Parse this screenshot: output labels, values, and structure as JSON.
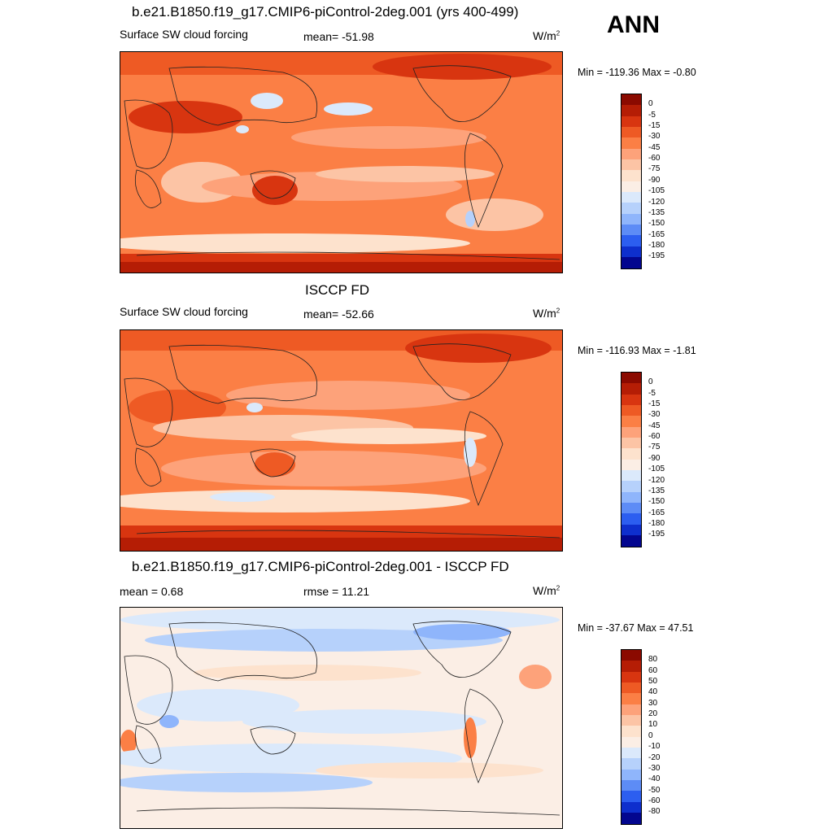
{
  "season": "ANN",
  "panels": [
    {
      "title": "b.e21.B1850.f19_g17.CMIP6-piControl-2deg.001 (yrs 400-499)",
      "left_label": "Surface SW cloud forcing",
      "center_label": "mean= -51.98",
      "units": "W/m",
      "units_sup": "2",
      "minmax": "Min = -119.36 Max =  -0.80",
      "colorbar_levels": [
        "0",
        "-5",
        "-15",
        "-30",
        "-45",
        "-60",
        "-75",
        "-90",
        "-105",
        "-120",
        "-135",
        "-150",
        "-165",
        "-180",
        "-195"
      ],
      "colorbar_colors": [
        "#8b0a00",
        "#b51d05",
        "#d83510",
        "#ee5a24",
        "#fb7f45",
        "#fda27a",
        "#fcc4a5",
        "#fde2cd",
        "#fbeee5",
        "#dbe9fb",
        "#b6d1fb",
        "#8fb5fb",
        "#5d8cf6",
        "#2c5ef0",
        "#0e2fcd",
        "#03068f"
      ]
    },
    {
      "title": "ISCCP FD",
      "left_label": "Surface SW cloud forcing",
      "center_label": "mean= -52.66",
      "units": "W/m",
      "units_sup": "2",
      "minmax": "Min = -116.93 Max =  -1.81",
      "colorbar_levels": [
        "0",
        "-5",
        "-15",
        "-30",
        "-45",
        "-60",
        "-75",
        "-90",
        "-105",
        "-120",
        "-135",
        "-150",
        "-165",
        "-180",
        "-195"
      ],
      "colorbar_colors": [
        "#8b0a00",
        "#b51d05",
        "#d83510",
        "#ee5a24",
        "#fb7f45",
        "#fda27a",
        "#fcc4a5",
        "#fde2cd",
        "#fbeee5",
        "#dbe9fb",
        "#b6d1fb",
        "#8fb5fb",
        "#5d8cf6",
        "#2c5ef0",
        "#0e2fcd",
        "#03068f"
      ]
    },
    {
      "title": "b.e21.B1850.f19_g17.CMIP6-piControl-2deg.001 - ISCCP FD",
      "left_label": "mean =   0.68",
      "center_label": "rmse =  11.21",
      "units": "W/m",
      "units_sup": "2",
      "minmax": "Min = -37.67 Max =  47.51",
      "colorbar_levels": [
        "80",
        "60",
        "50",
        "40",
        "30",
        "20",
        "10",
        "0",
        "-10",
        "-20",
        "-30",
        "-40",
        "-50",
        "-60",
        "-80"
      ],
      "colorbar_colors": [
        "#8b0a00",
        "#b51d05",
        "#d83510",
        "#ee5a24",
        "#fb7f45",
        "#fda27a",
        "#fcc4a5",
        "#fde2cd",
        "#fbeee5",
        "#dbe9fb",
        "#b6d1fb",
        "#8fb5fb",
        "#5d8cf6",
        "#2c5ef0",
        "#0e2fcd",
        "#03068f"
      ]
    }
  ]
}
